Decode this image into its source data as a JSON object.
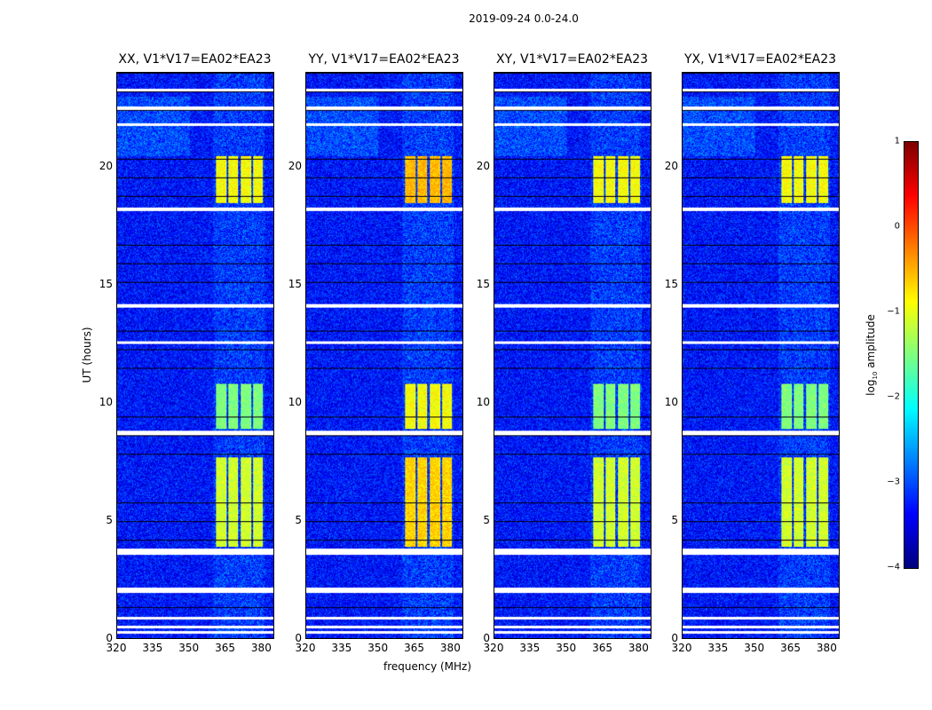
{
  "chart_data": {
    "type": "heatmap",
    "title": "2019-09-24 0.0-24.0",
    "xlabel": "frequency (MHz)",
    "ylabel": "UT (hours)",
    "xlim": [
      320,
      385
    ],
    "ylim": [
      0,
      24
    ],
    "xticks": [
      "320",
      "335",
      "350",
      "365",
      "380"
    ],
    "yticks": [
      "0",
      "5",
      "10",
      "15",
      "20"
    ],
    "panels": [
      {
        "title": "XX, V1*V17=EA02*EA23",
        "bright_scale": 1.0
      },
      {
        "title": "YY, V1*V17=EA02*EA23",
        "bright_scale": 1.35
      },
      {
        "title": "XY, V1*V17=EA02*EA23",
        "bright_scale": 1.0
      },
      {
        "title": "YX, V1*V17=EA02*EA23",
        "bright_scale": 1.0
      }
    ],
    "rfi_subbands_mhz": [
      [
        361,
        365.4
      ],
      [
        366.2,
        370.2
      ],
      [
        371.3,
        375.7
      ],
      [
        376.4,
        380.4
      ]
    ],
    "rfi_episodes_hours": [
      {
        "t": [
          3.9,
          7.7
        ],
        "log_amp": -1.1
      },
      {
        "t": [
          8.9,
          10.8
        ],
        "log_amp": -1.5
      },
      {
        "t": [
          18.5,
          20.5
        ],
        "log_amp": -0.9
      }
    ],
    "flagged_hours": [
      0.25,
      0.5,
      0.85,
      2.0,
      2.1,
      3.6,
      3.7,
      3.75,
      8.7,
      8.75,
      18.2,
      18.25,
      14.1,
      14.15,
      12.55,
      21.8,
      22.5,
      22.55,
      23.3
    ],
    "background_log_amp": -3.3,
    "colorbar": {
      "label": "log10 amplitude",
      "label_main": "log",
      "label_sub": "10",
      "label_rest": " amplitude",
      "range": [
        -4,
        1
      ],
      "ticks": [
        "1",
        "0",
        "−1",
        "−2",
        "−3",
        "−4"
      ],
      "colormap": "jet"
    }
  }
}
